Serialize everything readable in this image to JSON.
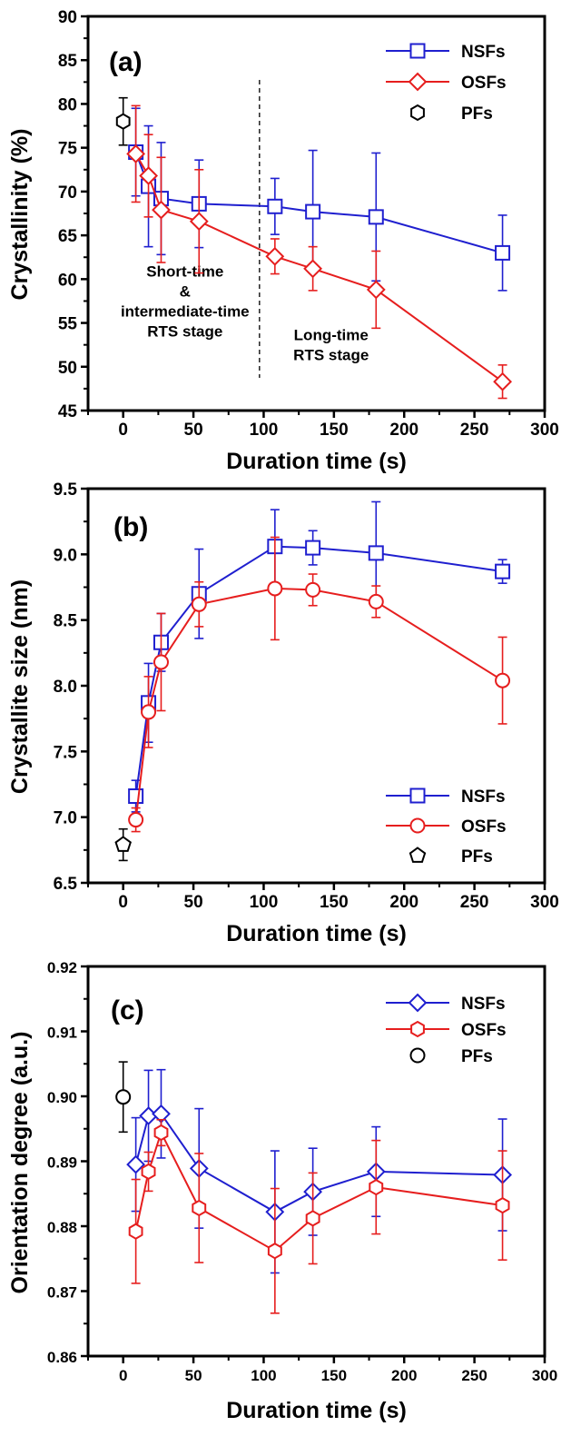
{
  "chart_data": [
    {
      "type": "line",
      "panel_label": "(a)",
      "xlabel": "Duration time (s)",
      "ylabel": "Crystallinity (%)",
      "xlim": [
        -25,
        300
      ],
      "ylim": [
        45,
        90
      ],
      "xticks": [
        0,
        50,
        100,
        150,
        200,
        250,
        300
      ],
      "yticks": [
        45,
        50,
        55,
        60,
        65,
        70,
        75,
        80,
        85,
        90
      ],
      "legend_position": "top-right",
      "series": [
        {
          "name": "NSFs",
          "marker": "square",
          "color": "#1f1fcf",
          "x": [
            9,
            18,
            27,
            54,
            108,
            135,
            180,
            270
          ],
          "y": [
            74.5,
            70.6,
            69.2,
            68.6,
            68.3,
            67.7,
            67.1,
            63.0
          ],
          "err": [
            5.0,
            6.9,
            6.4,
            5.0,
            3.2,
            7.0,
            7.3,
            4.3
          ]
        },
        {
          "name": "OSFs",
          "marker": "diamond",
          "color": "#e61e1e",
          "x": [
            9,
            18,
            27,
            54,
            108,
            135,
            180,
            270
          ],
          "y": [
            74.3,
            71.8,
            67.9,
            66.6,
            62.6,
            61.2,
            58.8,
            48.3
          ],
          "err": [
            5.5,
            4.7,
            6.0,
            5.9,
            2.0,
            2.5,
            4.4,
            1.9
          ]
        },
        {
          "name": "PFs",
          "marker": "hexagon",
          "color": "#000000",
          "x": [
            0
          ],
          "y": [
            78.0
          ],
          "err": [
            2.7
          ]
        }
      ],
      "annotations": [
        {
          "lines": [
            "Short-time",
            "&",
            "intermediate-time",
            "RTS stage"
          ],
          "x": 44,
          "y": 57.5
        },
        {
          "lines": [
            "Long-time",
            "RTS stage"
          ],
          "x": 148,
          "y": 52.5
        }
      ],
      "divider_x": 97
    },
    {
      "type": "line",
      "panel_label": "(b)",
      "xlabel": "Duration time (s)",
      "ylabel": "Crystallite size (nm)",
      "xlim": [
        -25,
        300
      ],
      "ylim": [
        6.5,
        9.5
      ],
      "xticks": [
        0,
        50,
        100,
        150,
        200,
        250,
        300
      ],
      "yticks": [
        6.5,
        7.0,
        7.5,
        8.0,
        8.5,
        9.0,
        9.5
      ],
      "legend_position": "bottom-right",
      "series": [
        {
          "name": "NSFs",
          "marker": "square",
          "color": "#1f1fcf",
          "x": [
            9,
            18,
            27,
            54,
            108,
            135,
            180,
            270
          ],
          "y": [
            7.16,
            7.87,
            8.33,
            8.7,
            9.06,
            9.05,
            9.01,
            8.87
          ],
          "err": [
            0.12,
            0.3,
            0.22,
            0.34,
            0.28,
            0.13,
            0.39,
            0.09
          ]
        },
        {
          "name": "OSFs",
          "marker": "circle",
          "color": "#e61e1e",
          "x": [
            9,
            18,
            27,
            54,
            108,
            135,
            180,
            270
          ],
          "y": [
            6.98,
            7.8,
            8.18,
            8.62,
            8.74,
            8.73,
            8.64,
            8.04
          ],
          "err": [
            0.09,
            0.27,
            0.37,
            0.17,
            0.39,
            0.12,
            0.12,
            0.33
          ]
        },
        {
          "name": "PFs",
          "marker": "pentagon",
          "color": "#000000",
          "x": [
            0
          ],
          "y": [
            6.79
          ],
          "err": [
            0.12
          ]
        }
      ]
    },
    {
      "type": "line",
      "panel_label": "(c)",
      "xlabel": "Duration time (s)",
      "ylabel": "Orientation degree (a.u.)",
      "xlim": [
        -25,
        300
      ],
      "ylim": [
        0.86,
        0.92
      ],
      "xticks": [
        0,
        50,
        100,
        150,
        200,
        250,
        300
      ],
      "yticks": [
        0.86,
        0.87,
        0.88,
        0.89,
        0.9,
        0.91,
        0.92
      ],
      "legend_position": "top-right",
      "series": [
        {
          "name": "NSFs",
          "marker": "diamond",
          "color": "#1f1fcf",
          "x": [
            9,
            18,
            27,
            54,
            108,
            135,
            180,
            270
          ],
          "y": [
            0.8895,
            0.897,
            0.8973,
            0.8889,
            0.8822,
            0.8853,
            0.8884,
            0.8879
          ],
          "err": [
            0.0072,
            0.007,
            0.0068,
            0.0092,
            0.0094,
            0.0067,
            0.0069,
            0.0086
          ]
        },
        {
          "name": "OSFs",
          "marker": "hexagon",
          "color": "#e61e1e",
          "x": [
            9,
            18,
            27,
            54,
            108,
            135,
            180,
            270
          ],
          "y": [
            0.8792,
            0.8884,
            0.8944,
            0.8828,
            0.8762,
            0.8812,
            0.886,
            0.8832
          ],
          "err": [
            0.008,
            0.003,
            0.002,
            0.0084,
            0.0096,
            0.007,
            0.0072,
            0.0084
          ]
        },
        {
          "name": "PFs",
          "marker": "circle",
          "color": "#000000",
          "x": [
            0
          ],
          "y": [
            0.8999
          ],
          "err": [
            0.0054
          ]
        }
      ]
    }
  ]
}
